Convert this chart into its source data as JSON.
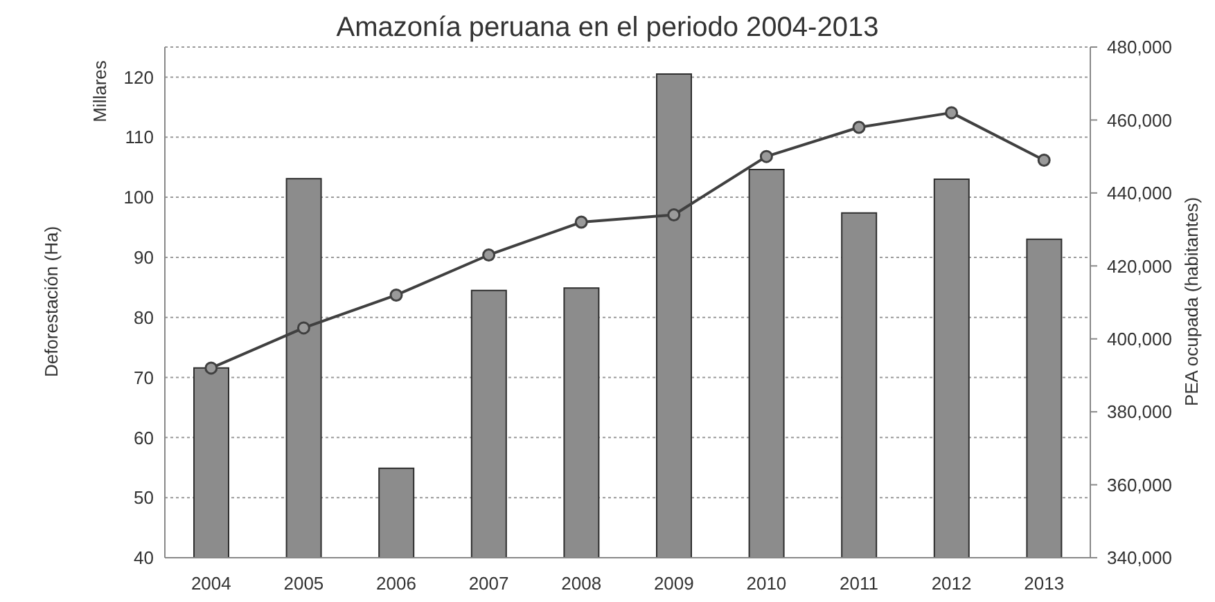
{
  "chart_data": {
    "type": "bar",
    "title": "Amazonía peruana en el periodo 2004-2013",
    "ylabel": "Deforestación (Ha)",
    "y2label": "PEA ocupada (habitantes)",
    "annotations": [
      "Millares"
    ],
    "categories": [
      "2004",
      "2005",
      "2006",
      "2007",
      "2008",
      "2009",
      "2010",
      "2011",
      "2012",
      "2013"
    ],
    "series": [
      {
        "color": "#8c8c8c",
        "values": [
          71.6,
          103.1,
          54.9,
          84.5,
          84.9,
          120.5,
          104.6,
          97.4,
          103,
          93
        ]
      },
      {
        "type": "line",
        "axis": "y2",
        "color": "#404040",
        "values": [
          392000,
          403000,
          412000,
          423000,
          432000,
          434000,
          450000,
          458000,
          462000,
          449000
        ]
      }
    ],
    "ylim": [
      40,
      125
    ],
    "yticks": [
      40,
      50,
      60,
      70,
      80,
      90,
      100,
      110,
      120
    ],
    "y2lim": [
      340000,
      480000
    ],
    "y2ticks": [
      {
        "value": 340000,
        "label": "340,000"
      },
      {
        "value": 360000,
        "label": "360,000"
      },
      {
        "value": 380000,
        "label": "380,000"
      },
      {
        "value": 400000,
        "label": "400,000"
      },
      {
        "value": 420000,
        "label": "420,000"
      },
      {
        "value": 440000,
        "label": "440,000"
      },
      {
        "value": 460000,
        "label": "460,000"
      },
      {
        "value": 480000,
        "label": "480,000"
      }
    ],
    "grid": "y",
    "marker": "circle"
  }
}
